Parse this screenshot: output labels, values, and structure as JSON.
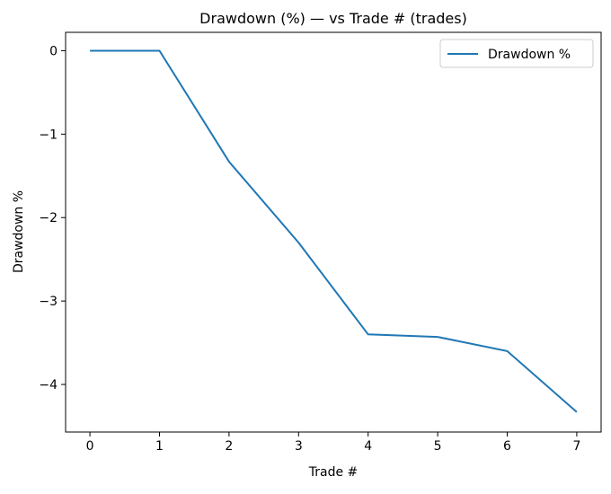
{
  "chart_data": {
    "type": "line",
    "title": "Drawdown (%) — vs Trade # (trades)",
    "xlabel": "Trade #",
    "ylabel": "Drawdown %",
    "x": [
      0,
      1,
      2,
      3,
      4,
      5,
      6,
      7
    ],
    "series": [
      {
        "name": "Drawdown %",
        "color": "#1f77b4",
        "values": [
          0,
          0,
          -1.33,
          -2.3,
          -3.4,
          -3.43,
          -3.6,
          -4.33
        ]
      }
    ],
    "xlim": [
      -0.35,
      7.35
    ],
    "ylim": [
      -4.57,
      0.22
    ],
    "xticks": [
      0,
      1,
      2,
      3,
      4,
      5,
      6,
      7
    ],
    "xtick_labels": [
      "0",
      "1",
      "2",
      "3",
      "4",
      "5",
      "6",
      "7"
    ],
    "yticks": [
      0,
      -1,
      -2,
      -3,
      -4
    ],
    "ytick_labels": [
      "0",
      "−1",
      "−2",
      "−3",
      "−4"
    ],
    "grid": false,
    "legend": "top-right"
  }
}
